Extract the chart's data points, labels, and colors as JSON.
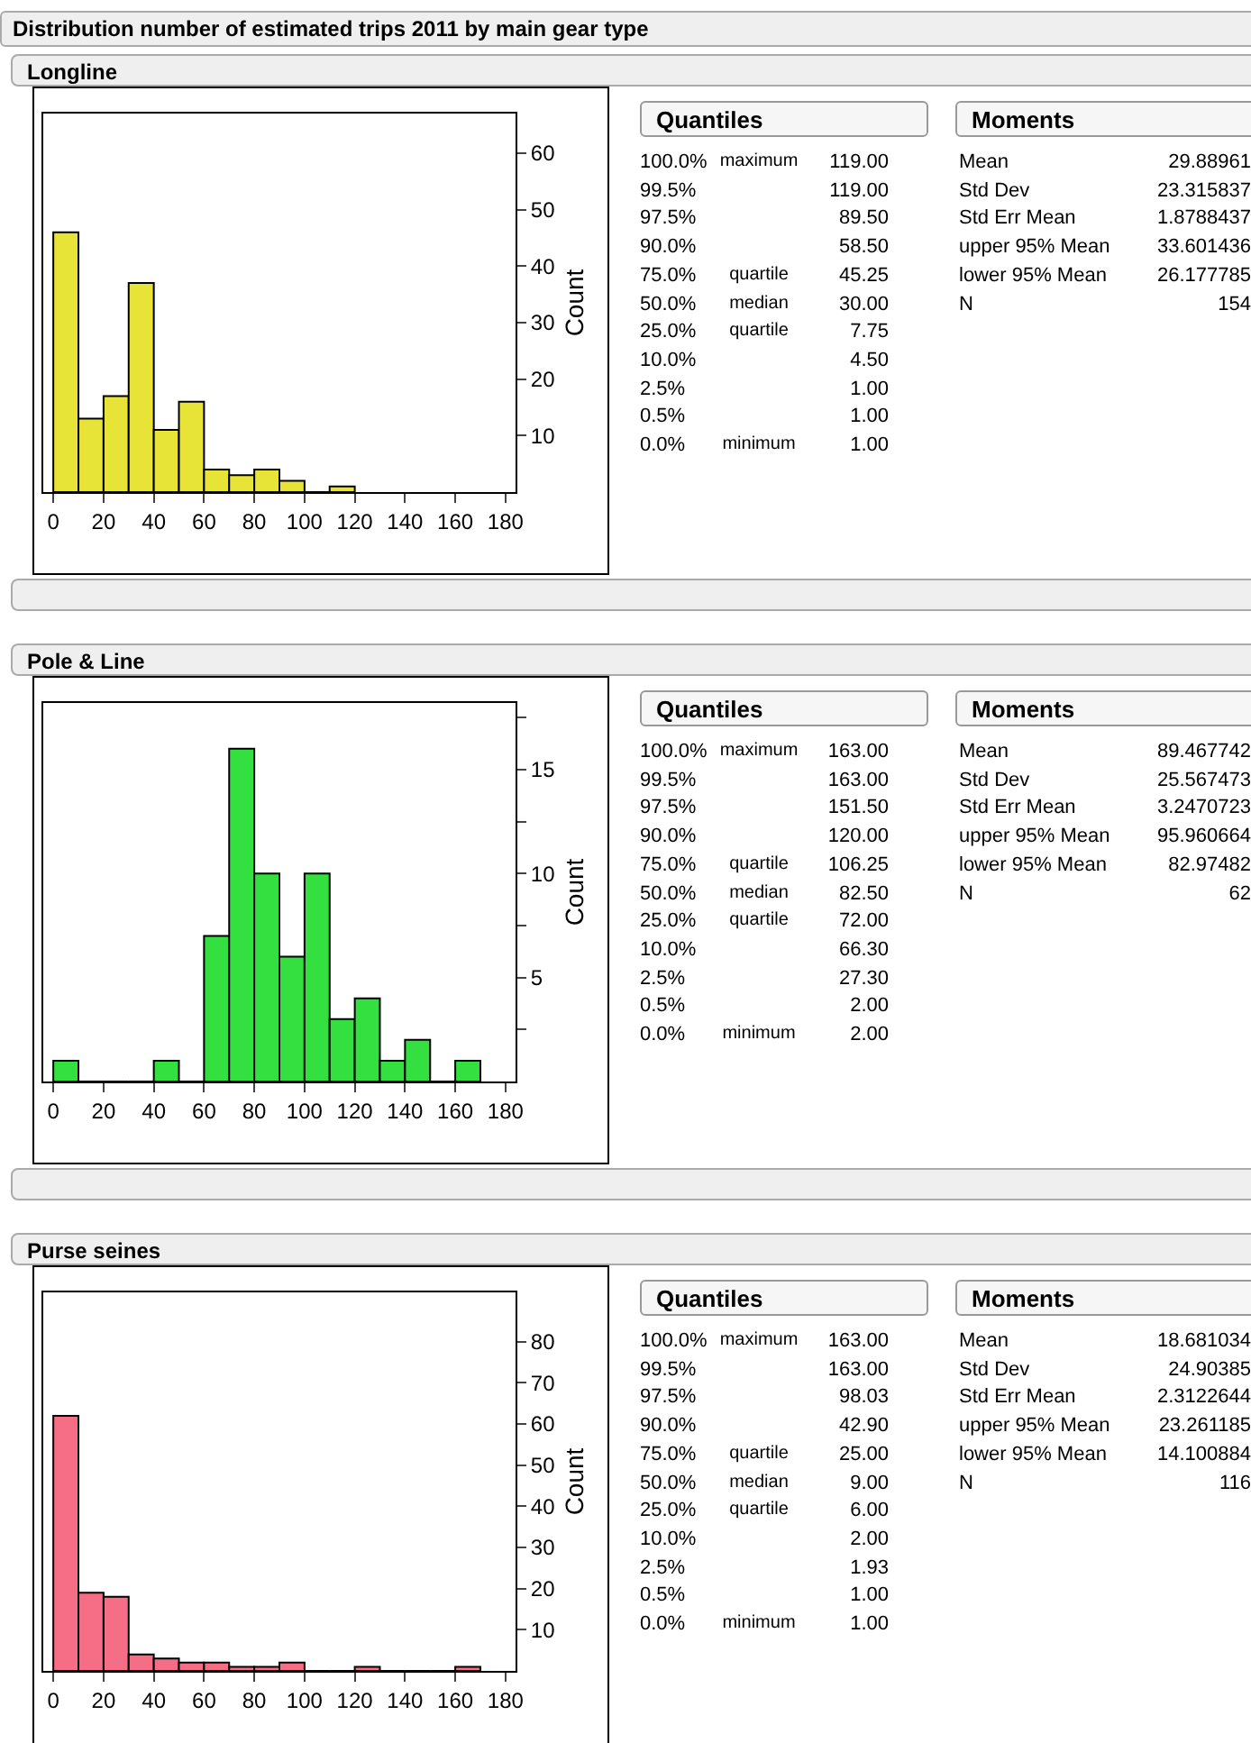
{
  "chart_data": [
    {
      "type": "other",
      "title": "Distribution number of estimated trips 2011 by main gear type"
    },
    {
      "type": "histogram",
      "title": "Longline",
      "ylabel": "Count",
      "color": "#e8e337",
      "bins": [
        0,
        10,
        20,
        30,
        40,
        50,
        60,
        70,
        80,
        90,
        100,
        110,
        120
      ],
      "values": [
        46,
        13,
        17,
        37,
        11,
        16,
        4,
        3,
        4,
        2,
        0,
        1
      ],
      "xlim": [
        -4,
        184
      ],
      "xticks": [
        0,
        20,
        40,
        60,
        80,
        100,
        120,
        140,
        160,
        180
      ],
      "ylim": [
        0,
        67
      ],
      "yticks": [
        10,
        20,
        30,
        40,
        50,
        60
      ],
      "grid": false
    },
    {
      "type": "other",
      "title": "Quantiles",
      "annotations": [
        "100.0%",
        "maximum",
        "119.00",
        "99.5%",
        null,
        "119.00",
        "97.5%",
        null,
        "89.50",
        "90.0%",
        null,
        "58.50",
        "75.0%",
        "quartile",
        "45.25",
        "50.0%",
        "median",
        "30.00",
        "25.0%",
        "quartile",
        "7.75",
        "10.0%",
        null,
        "4.50",
        "2.5%",
        null,
        "1.00",
        "0.5%",
        null,
        "1.00",
        "0.0%",
        "minimum",
        "1.00"
      ]
    },
    {
      "type": "other",
      "title": "Moments",
      "annotations": [
        "Mean",
        "29.88961",
        "Std Dev",
        "23.315837",
        "Std Err Mean",
        "1.8788437",
        "upper 95% Mean",
        "33.601436",
        "lower 95% Mean",
        "26.177785",
        "N",
        "154"
      ]
    },
    {
      "type": "histogram",
      "title": "Pole & Line",
      "ylabel": "Count",
      "color": "#33e03f",
      "bins": [
        0,
        10,
        20,
        30,
        40,
        50,
        60,
        70,
        80,
        90,
        100,
        110,
        120,
        130,
        140,
        150,
        160,
        170
      ],
      "values": [
        1,
        0,
        0,
        0,
        1,
        0,
        7,
        16,
        10,
        6,
        10,
        3,
        4,
        1,
        2,
        0,
        1
      ],
      "xlim": [
        -4,
        184
      ],
      "xticks": [
        0,
        20,
        40,
        60,
        80,
        100,
        120,
        140,
        160,
        180
      ],
      "ylim": [
        0,
        18.2
      ],
      "yticks": [
        {
          "value": 2.5,
          "label": null
        },
        5,
        {
          "value": 7.5,
          "label": null
        },
        10,
        {
          "value": 12.5,
          "label": null
        },
        15,
        {
          "value": 17.5,
          "label": null
        }
      ],
      "grid": false
    },
    {
      "type": "other",
      "title": "Quantiles",
      "annotations": [
        "100.0%",
        "maximum",
        "163.00",
        "99.5%",
        null,
        "163.00",
        "97.5%",
        null,
        "151.50",
        "90.0%",
        null,
        "120.00",
        "75.0%",
        "quartile",
        "106.25",
        "50.0%",
        "median",
        "82.50",
        "25.0%",
        "quartile",
        "72.00",
        "10.0%",
        null,
        "66.30",
        "2.5%",
        null,
        "27.30",
        "0.5%",
        null,
        "2.00",
        "0.0%",
        "minimum",
        "2.00"
      ]
    },
    {
      "type": "other",
      "title": "Moments",
      "annotations": [
        "Mean",
        "89.467742",
        "Std Dev",
        "25.567473",
        "Std Err Mean",
        "3.2470723",
        "upper 95% Mean",
        "95.960664",
        "lower 95% Mean",
        "82.97482",
        "N",
        "62"
      ]
    },
    {
      "type": "histogram",
      "title": "Purse seines",
      "ylabel": "Count",
      "color": "#f56e85",
      "bins": [
        0,
        10,
        20,
        30,
        40,
        50,
        60,
        70,
        80,
        90,
        100,
        110,
        120,
        130,
        140,
        150,
        160,
        170
      ],
      "values": [
        62,
        19,
        18,
        4,
        3,
        2,
        2,
        1,
        1,
        2,
        0,
        0,
        1,
        0,
        0,
        0,
        1
      ],
      "xlim": [
        -4,
        184
      ],
      "xticks": [
        0,
        20,
        40,
        60,
        80,
        100,
        120,
        140,
        160,
        180
      ],
      "ylim": [
        0,
        92
      ],
      "yticks": [
        10,
        20,
        30,
        40,
        50,
        60,
        70,
        80
      ],
      "grid": false
    },
    {
      "type": "other",
      "title": "Quantiles",
      "annotations": [
        "100.0%",
        "maximum",
        "163.00",
        "99.5%",
        null,
        "163.00",
        "97.5%",
        null,
        "98.03",
        "90.0%",
        null,
        "42.90",
        "75.0%",
        "quartile",
        "25.00",
        "50.0%",
        "median",
        "9.00",
        "25.0%",
        "quartile",
        "6.00",
        "10.0%",
        null,
        "2.00",
        "2.5%",
        null,
        "1.93",
        "0.5%",
        null,
        "1.00",
        "0.0%",
        "minimum",
        "1.00"
      ]
    },
    {
      "type": "other",
      "title": "Moments",
      "annotations": [
        "Mean",
        "18.681034",
        "Std Dev",
        "24.90385",
        "Std Err Mean",
        "2.3122644",
        "upper 95% Mean",
        "23.261185",
        "lower 95% Mean",
        "14.100884",
        "N",
        "116"
      ]
    }
  ]
}
